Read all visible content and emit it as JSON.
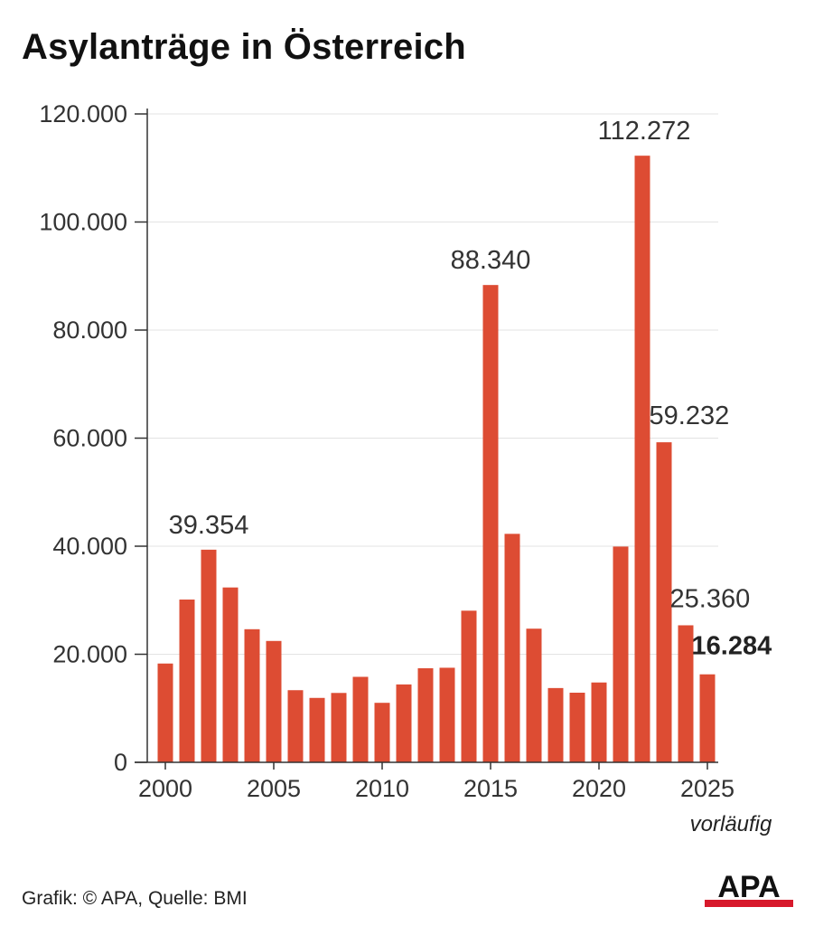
{
  "header": {
    "title": "Asylanträge in Österreich"
  },
  "footer": {
    "source": "Grafik: © APA, Quelle: BMI",
    "logo_text": "APA"
  },
  "colors": {
    "bar": "#dd4c33",
    "grid": "#e3e3e3",
    "axis": "#333333",
    "logo_red": "#d7192b"
  },
  "chart_data": {
    "type": "bar",
    "title": "Asylanträge in Österreich",
    "xlabel": "",
    "ylabel": "",
    "ylim": [
      0,
      120000
    ],
    "grid": true,
    "categories": [
      "2000",
      "2001",
      "2002",
      "2003",
      "2004",
      "2005",
      "2006",
      "2007",
      "2008",
      "2009",
      "2010",
      "2011",
      "2012",
      "2013",
      "2014",
      "2015",
      "2016",
      "2017",
      "2018",
      "2019",
      "2020",
      "2021",
      "2022",
      "2023",
      "2024",
      "2025"
    ],
    "values": [
      18284,
      30127,
      39354,
      32359,
      24634,
      22461,
      13349,
      11921,
      12841,
      15821,
      11012,
      14416,
      17413,
      17503,
      28064,
      88340,
      42285,
      24735,
      13746,
      12886,
      14775,
      39930,
      112272,
      59232,
      25360,
      16284
    ],
    "y_ticks": [
      0,
      20000,
      40000,
      60000,
      80000,
      100000,
      120000
    ],
    "y_tick_labels": [
      "0",
      "20.000",
      "40.000",
      "60.000",
      "80.000",
      "100.000",
      "120.000"
    ],
    "x_ticks": [
      "2000",
      "2005",
      "2010",
      "2015",
      "2020",
      "2025"
    ],
    "annotations": [
      {
        "year": "2002",
        "text": "39.354",
        "bold": false
      },
      {
        "year": "2015",
        "text": "88.340",
        "bold": false
      },
      {
        "year": "2022",
        "text": "112.272",
        "bold": false
      },
      {
        "year": "2023",
        "text": "59.232",
        "bold": false
      },
      {
        "year": "2024",
        "text": "25.360",
        "bold": false
      },
      {
        "year": "2025",
        "text": "16.284",
        "bold": true
      }
    ],
    "note": {
      "year": "2025",
      "text": "vorläufig"
    }
  }
}
